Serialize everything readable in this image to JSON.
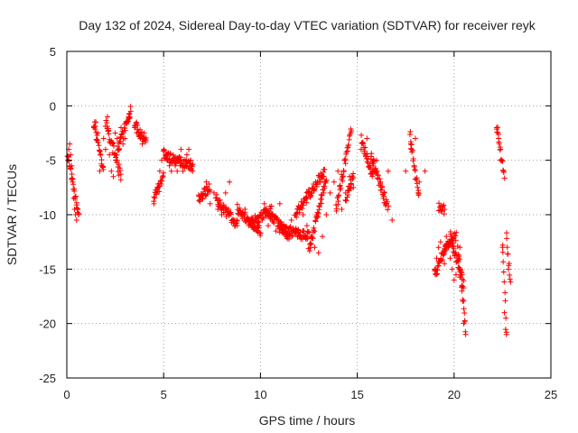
{
  "chart_data": {
    "type": "scatter",
    "title": "Day 132 of 2024, Sidereal Day-to-day VTEC variation (SDTVAR) for receiver reyk",
    "xlabel": "GPS time / hours",
    "ylabel": "SDTVAR / TECUs",
    "xlim": [
      0,
      25
    ],
    "ylim": [
      -25,
      5
    ],
    "xticks": [
      0,
      5,
      10,
      15,
      20,
      25
    ],
    "yticks": [
      5,
      0,
      -5,
      -10,
      -15,
      -20,
      -25
    ],
    "xtick_labels": [
      "0",
      "5",
      "10",
      "15",
      "20",
      "25"
    ],
    "ytick_labels": [
      "5",
      "0",
      "-5",
      "-10",
      "-15",
      "-20",
      "-25"
    ],
    "grid": true,
    "marker": "+",
    "color": "#ff0000",
    "series": [
      {
        "name": "SDTVAR",
        "x": [
          0.05,
          0.1,
          0.15,
          0.2,
          0.25,
          0.3,
          0.35,
          0.4,
          0.45,
          0.5,
          0.55,
          0.6,
          1.4,
          1.5,
          1.6,
          1.7,
          1.8,
          1.9,
          2.0,
          2.1,
          2.2,
          2.3,
          2.4,
          2.5,
          2.6,
          2.7,
          2.8,
          2.9,
          3.0,
          3.1,
          3.2,
          3.3,
          3.5,
          3.6,
          3.7,
          3.8,
          3.9,
          4.0,
          4.5,
          4.6,
          4.7,
          4.8,
          4.9,
          5.0,
          5.1,
          5.2,
          5.3,
          5.4,
          5.5,
          5.6,
          5.7,
          5.8,
          5.9,
          6.0,
          6.1,
          6.2,
          6.3,
          6.4,
          6.5,
          7.0,
          7.2,
          7.4,
          7.6,
          7.8,
          8.0,
          8.2,
          8.4,
          8.6,
          8.8,
          9.0,
          9.2,
          9.4,
          9.6,
          9.8,
          10.0,
          10.2,
          10.4,
          10.6,
          10.8,
          11.0,
          11.2,
          11.4,
          11.6,
          11.8,
          12.0,
          12.2,
          12.4,
          12.6,
          12.8,
          13.0,
          13.2,
          13.4,
          13.6,
          13.8,
          14.0,
          14.2,
          14.4,
          14.6,
          14.8,
          15.2,
          15.5,
          15.8,
          16.0,
          16.2,
          16.4,
          16.6,
          16.8,
          17.5,
          17.8,
          18.0,
          18.2,
          18.5,
          19.0,
          19.1,
          19.2,
          19.3,
          19.4,
          19.5,
          19.6,
          19.7,
          19.8,
          19.9,
          20.0,
          20.1,
          20.2,
          20.3,
          20.4,
          20.5,
          20.6,
          22.2,
          22.3,
          22.4,
          22.5,
          22.6,
          22.7,
          22.8
        ],
        "y": [
          -5,
          -4,
          -3.5,
          -4.5,
          -5.5,
          -7,
          -8.5,
          -9.5,
          -10,
          -10.5,
          -9.8,
          -10,
          -2,
          -1.5,
          -2.5,
          -6,
          -5.5,
          -3,
          -4,
          -1,
          -4.5,
          -6,
          -6.5,
          -2.5,
          -3,
          -4,
          -2,
          -3.5,
          -3,
          -1.5,
          -1,
          -0.5,
          -2,
          -1.5,
          -2.5,
          -3,
          -3.5,
          -2.5,
          -9,
          -8,
          -7.5,
          -6,
          -5,
          -4,
          -4.5,
          -5,
          -5.5,
          -6,
          -5,
          -5.5,
          -6,
          -5,
          -4,
          -6,
          -5.5,
          -4.5,
          -4,
          -5,
          -6,
          -8.5,
          -7,
          -9,
          -8,
          -9.5,
          -10,
          -8,
          -7,
          -10.5,
          -11,
          -10,
          -9.5,
          -11,
          -10.5,
          -11.5,
          -10,
          -9,
          -11,
          -10.5,
          -11.5,
          -9,
          -11,
          -12,
          -10.5,
          -11.5,
          -12,
          -10,
          -11,
          -12,
          -13,
          -13.5,
          -12,
          -10,
          -8,
          -7,
          -6,
          -9.5,
          -8,
          -6.5,
          -7.5,
          -4,
          -3,
          -6,
          -5,
          -7,
          -8,
          -6,
          -10.5,
          -6,
          -4,
          -3,
          -7,
          -6,
          -15,
          -14,
          -13,
          -12.5,
          -13.5,
          -14.5,
          -12,
          -13,
          -14,
          -15,
          -16,
          -15.5,
          -14,
          -13,
          -16.5,
          -20,
          -21,
          -2,
          -3,
          -5,
          -13,
          -19,
          -21,
          -15
        ],
        "clusters": [
          {
            "t0": 0.05,
            "t1": 0.6,
            "v0": -4.5,
            "v1": -10
          },
          {
            "t0": 1.4,
            "t1": 1.9,
            "v0": -1.5,
            "v1": -6
          },
          {
            "t0": 2.0,
            "t1": 2.8,
            "v0": -1.5,
            "v1": -6.5
          },
          {
            "t0": 2.6,
            "t1": 3.3,
            "v0": -4.2,
            "v1": -0.5
          },
          {
            "t0": 3.5,
            "t1": 4.1,
            "v0": -1.8,
            "v1": -3.2
          },
          {
            "t0": 4.5,
            "t1": 5.0,
            "v0": -8.5,
            "v1": -6.5
          },
          {
            "t0": 5.0,
            "t1": 5.6,
            "v0": -4.5,
            "v1": -5
          },
          {
            "t0": 5.6,
            "t1": 6.5,
            "v0": -5,
            "v1": -5.5
          },
          {
            "t0": 6.8,
            "t1": 7.4,
            "v0": -8.5,
            "v1": -7.5
          },
          {
            "t0": 7.7,
            "t1": 8.8,
            "v0": -8.5,
            "v1": -11
          },
          {
            "t0": 8.8,
            "t1": 10.0,
            "v0": -9.5,
            "v1": -11.5
          },
          {
            "t0": 9.5,
            "t1": 10.6,
            "v0": -10.8,
            "v1": -9.5
          },
          {
            "t0": 10.5,
            "t1": 11.5,
            "v0": -10,
            "v1": -12
          },
          {
            "t0": 11.0,
            "t1": 12.5,
            "v0": -11.2,
            "v1": -12
          },
          {
            "t0": 12.5,
            "t1": 13.4,
            "v0": -13.3,
            "v1": -6.5
          },
          {
            "t0": 11.8,
            "t1": 13.3,
            "v0": -10,
            "v1": -6
          },
          {
            "t0": 13.9,
            "t1": 14.7,
            "v0": -9.5,
            "v1": -2
          },
          {
            "t0": 14.4,
            "t1": 14.8,
            "v0": -8.5,
            "v1": -6.5
          },
          {
            "t0": 15.2,
            "t1": 15.8,
            "v0": -3,
            "v1": -6.5
          },
          {
            "t0": 15.7,
            "t1": 16.6,
            "v0": -4.5,
            "v1": -9.5
          },
          {
            "t0": 17.7,
            "t1": 18.2,
            "v0": -2.5,
            "v1": -8.5
          },
          {
            "t0": 19.0,
            "t1": 19.6,
            "v0": -15.5,
            "v1": -12.8
          },
          {
            "t0": 19.2,
            "t1": 19.5,
            "v0": -9.2,
            "v1": -9.6
          },
          {
            "t0": 19.5,
            "t1": 20.1,
            "v0": -13,
            "v1": -12
          },
          {
            "t0": 19.8,
            "t1": 20.5,
            "v0": -12,
            "v1": -16.5
          },
          {
            "t0": 20.2,
            "t1": 20.6,
            "v0": -13,
            "v1": -20.5
          },
          {
            "t0": 22.2,
            "t1": 22.6,
            "v0": -1.8,
            "v1": -6.5
          },
          {
            "t0": 22.5,
            "t1": 22.7,
            "v0": -13,
            "v1": -21
          },
          {
            "t0": 22.7,
            "t1": 22.9,
            "v0": -12,
            "v1": -16
          }
        ]
      }
    ]
  }
}
